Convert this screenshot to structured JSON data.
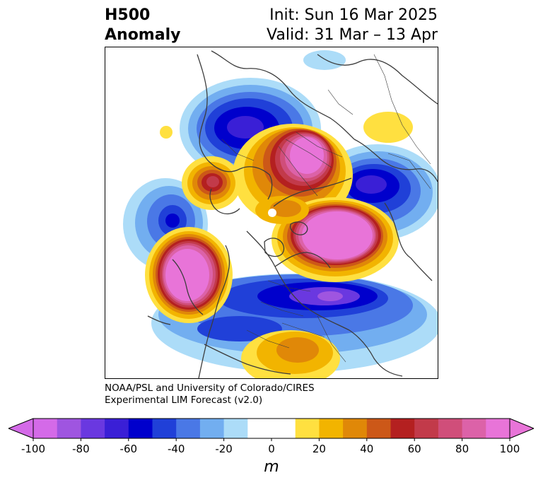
{
  "header": {
    "title_line1": "H500",
    "title_line2": "Anomaly",
    "init_label": "Init: Sun 16 Mar 2025",
    "valid_label": "Valid: 31 Mar – 13 Apr"
  },
  "credits": {
    "line1": "NOAA/PSL and University of Colorado/CIRES",
    "line2": "Experimental LIM Forecast (v2.0)"
  },
  "colorbar": {
    "unit": "m",
    "ticks": [
      "-100",
      "-80",
      "-60",
      "-40",
      "-20",
      "0",
      "20",
      "40",
      "60",
      "80",
      "100"
    ],
    "colors": [
      "#d46ae8",
      "#9f55e0",
      "#6a38e0",
      "#3a1fd6",
      "#0000cc",
      "#2040d8",
      "#4a78e6",
      "#72aef0",
      "#acdcf8",
      "#ffffff",
      "#ffffff",
      "#ffe040",
      "#f2b400",
      "#e08808",
      "#cc5818",
      "#b42020",
      "#c23a4a",
      "#d04e7a",
      "#dc62a8",
      "#e874d8"
    ],
    "min_extend_color": "#d46ae8",
    "max_extend_color": "#e874d8"
  },
  "map": {
    "projection": "north-polar-stereographic",
    "field": "500 hPa geopotential height anomaly"
  }
}
